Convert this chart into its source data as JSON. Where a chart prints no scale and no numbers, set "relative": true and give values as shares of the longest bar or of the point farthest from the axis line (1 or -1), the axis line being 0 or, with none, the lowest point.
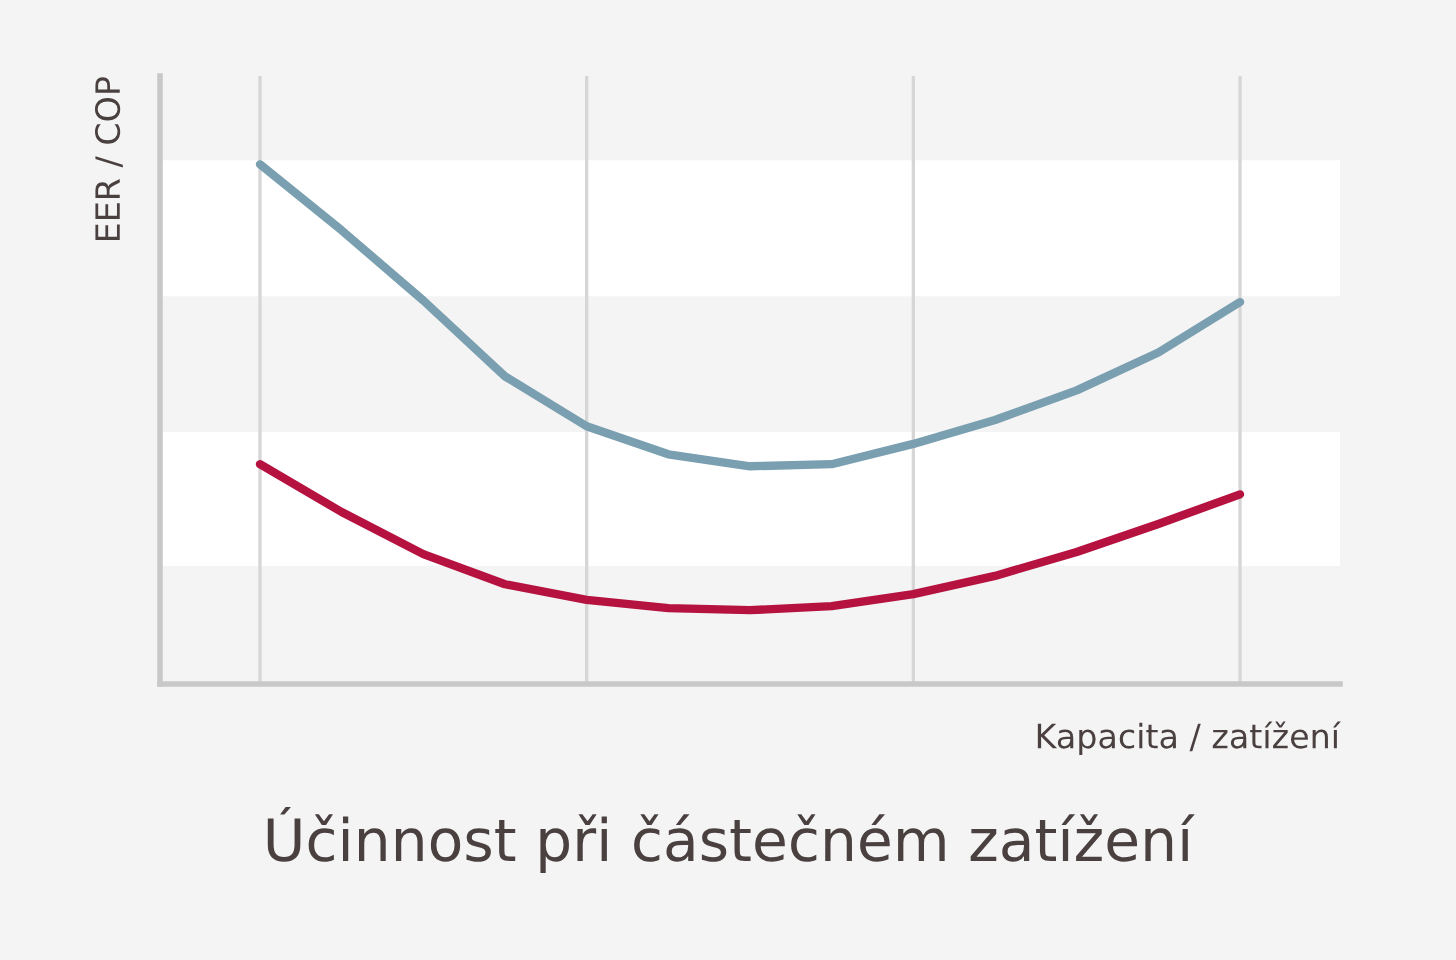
{
  "chart_data": {
    "type": "line",
    "relative": true,
    "title": "Účinnost při částečném zatížení",
    "xlabel": "Kapacita / zatížení",
    "ylabel": "EER / COP",
    "categories": [
      null,
      null,
      null,
      null,
      null,
      null,
      null,
      null,
      null,
      null,
      null,
      null,
      null
    ],
    "grid": "x",
    "legend": false,
    "marker": "none",
    "line_style": "solid",
    "series": [
      {
        "color": "#7a9fb0",
        "values": [
          1.0,
          0.873,
          0.738,
          0.592,
          0.496,
          0.442,
          0.419,
          0.423,
          0.462,
          0.508,
          0.565,
          0.638,
          0.735
        ]
      },
      {
        "color": "#b5123f",
        "values": [
          0.423,
          0.331,
          0.25,
          0.192,
          0.162,
          0.146,
          0.142,
          0.15,
          0.173,
          0.208,
          0.254,
          0.308,
          0.365
        ]
      }
    ]
  }
}
